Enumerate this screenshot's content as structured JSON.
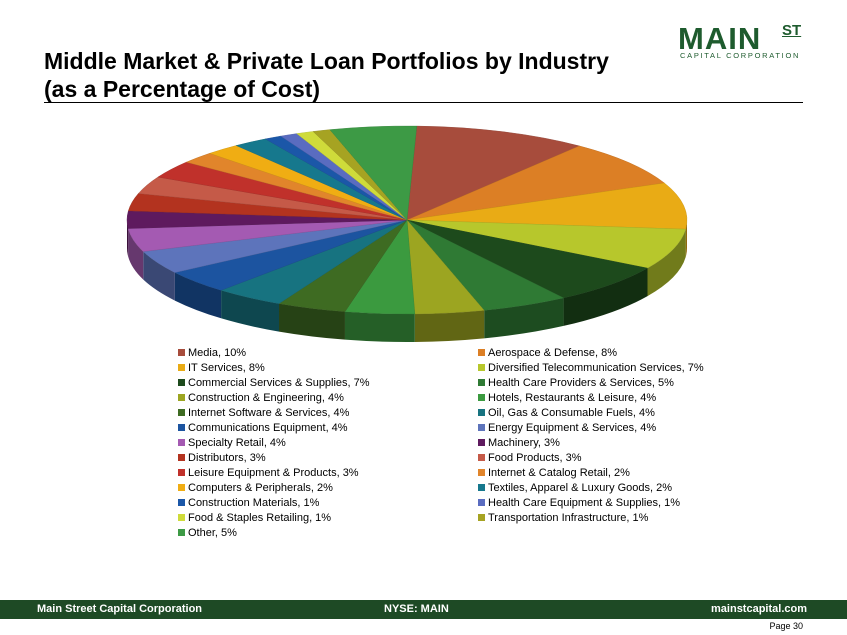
{
  "title": {
    "line1": "Middle Market & Private Loan Portfolios by Industry",
    "line2": "(as a Percentage of Cost)"
  },
  "logo": {
    "main": "MAIN",
    "st": "ST",
    "sub": "CAPITAL CORPORATION"
  },
  "footer": {
    "left": "Main Street Capital Corporation",
    "center": "NYSE: MAIN",
    "right": "mainstcapital.com"
  },
  "page": "Page  30",
  "chart_data": {
    "type": "pie",
    "style": "3d",
    "legend_position": "bottom",
    "slices": [
      {
        "label": "Media, 10%",
        "value": 10,
        "color": "#a74c3c"
      },
      {
        "label": "Aerospace & Defense, 8%",
        "value": 8,
        "color": "#dc7f25"
      },
      {
        "label": "IT Services, 8%",
        "value": 8,
        "color": "#e9ab15"
      },
      {
        "label": "Diversified Telecommunication Services, 7%",
        "value": 7,
        "color": "#b7c72c"
      },
      {
        "label": "Commercial Services & Supplies, 7%",
        "value": 7,
        "color": "#1d4a1c"
      },
      {
        "label": "Health Care Providers & Services, 5%",
        "value": 5,
        "color": "#2f7a34"
      },
      {
        "label": "Construction & Engineering, 4%",
        "value": 4,
        "color": "#9ca521"
      },
      {
        "label": "Hotels, Restaurants & Leisure, 4%",
        "value": 4,
        "color": "#3b9a3f"
      },
      {
        "label": "Internet Software & Services, 4%",
        "value": 4,
        "color": "#3e6b22"
      },
      {
        "label": "Oil, Gas & Consumable Fuels, 4%",
        "value": 4,
        "color": "#177380"
      },
      {
        "label": "Communications Equipment, 4%",
        "value": 4,
        "color": "#1c54a0"
      },
      {
        "label": "Energy Equipment & Services, 4%",
        "value": 4,
        "color": "#5d74bb"
      },
      {
        "label": "Specialty Retail, 4%",
        "value": 4,
        "color": "#a45ab2"
      },
      {
        "label": "Machinery, 3%",
        "value": 3,
        "color": "#5e1a5e"
      },
      {
        "label": "Distributors, 3%",
        "value": 3,
        "color": "#b3331f"
      },
      {
        "label": "Food Products, 3%",
        "value": 3,
        "color": "#c55a48"
      },
      {
        "label": "Leisure Equipment & Products, 3%",
        "value": 3,
        "color": "#c0312b"
      },
      {
        "label": "Internet & Catalog Retail, 2%",
        "value": 2,
        "color": "#e1852b"
      },
      {
        "label": "Computers & Peripherals, 2%",
        "value": 2,
        "color": "#f0ad13"
      },
      {
        "label": "Textiles, Apparel & Luxury Goods, 2%",
        "value": 2,
        "color": "#16788d"
      },
      {
        "label": "Construction Materials, 1%",
        "value": 1,
        "color": "#1b57a8"
      },
      {
        "label": "Health Care Equipment & Supplies, 1%",
        "value": 1,
        "color": "#5a6cc0"
      },
      {
        "label": "Food & Staples Retailing, 1%",
        "value": 1,
        "color": "#cfdb3a"
      },
      {
        "label": "Transportation Infrastructure, 1%",
        "value": 1,
        "color": "#a6a322"
      },
      {
        "label": "Other, 5%",
        "value": 5,
        "color": "#3d9a45"
      }
    ]
  }
}
